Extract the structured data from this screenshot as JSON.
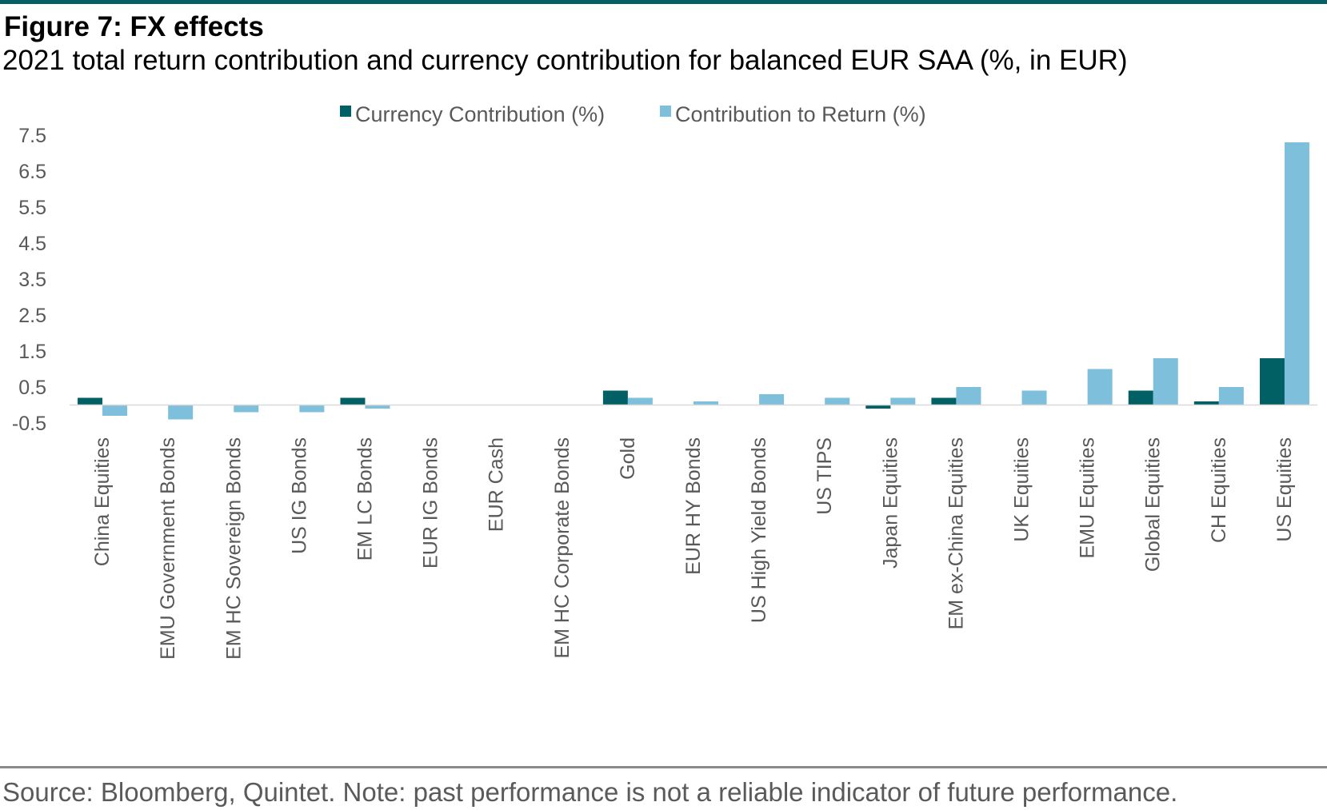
{
  "header": {
    "title": "Figure 7: FX effects",
    "subtitle": "2021 total return contribution and currency contribution for balanced EUR SAA (%, in EUR)"
  },
  "footer": {
    "source": "Source: Bloomberg, Quintet. Note: past performance is not a reliable indicator of future performance."
  },
  "chart_data": {
    "type": "bar",
    "title": "",
    "xlabel": "",
    "ylabel": "",
    "ylim": [
      -0.5,
      7.5
    ],
    "yticks": [
      "7.5",
      "6.5",
      "5.5",
      "4.5",
      "3.5",
      "2.5",
      "1.5",
      "0.5",
      "-0.5"
    ],
    "grid": false,
    "legend_position": "top-center",
    "categories": [
      "China Equities",
      "EMU Government Bonds",
      "EM HC Sovereign Bonds",
      "US IG Bonds",
      "EM LC Bonds",
      "EUR IG Bonds",
      "EUR Cash",
      "EM HC Corporate Bonds",
      "Gold",
      "EUR HY Bonds",
      "US High Yield Bonds",
      "US TIPS",
      "Japan Equities",
      "EM ex-China Equities",
      "UK Equities",
      "EMU Equities",
      "Global Equities",
      "CH Equities",
      "US Equities"
    ],
    "series": [
      {
        "name": "Currency Contribution (%)",
        "color": "#006064",
        "values": [
          0.2,
          0.0,
          0.0,
          0.0,
          0.2,
          0.0,
          0.0,
          0.0,
          0.4,
          0.0,
          0.0,
          0.0,
          -0.1,
          0.2,
          0.0,
          0.0,
          0.4,
          0.1,
          1.3
        ]
      },
      {
        "name": "Contribution to Return (%)",
        "color": "#7ebfdb",
        "values": [
          -0.3,
          -0.4,
          -0.2,
          -0.2,
          -0.1,
          0.0,
          0.0,
          0.0,
          0.2,
          0.1,
          0.3,
          0.2,
          0.2,
          0.5,
          0.4,
          1.0,
          1.3,
          0.5,
          7.3
        ]
      }
    ]
  }
}
